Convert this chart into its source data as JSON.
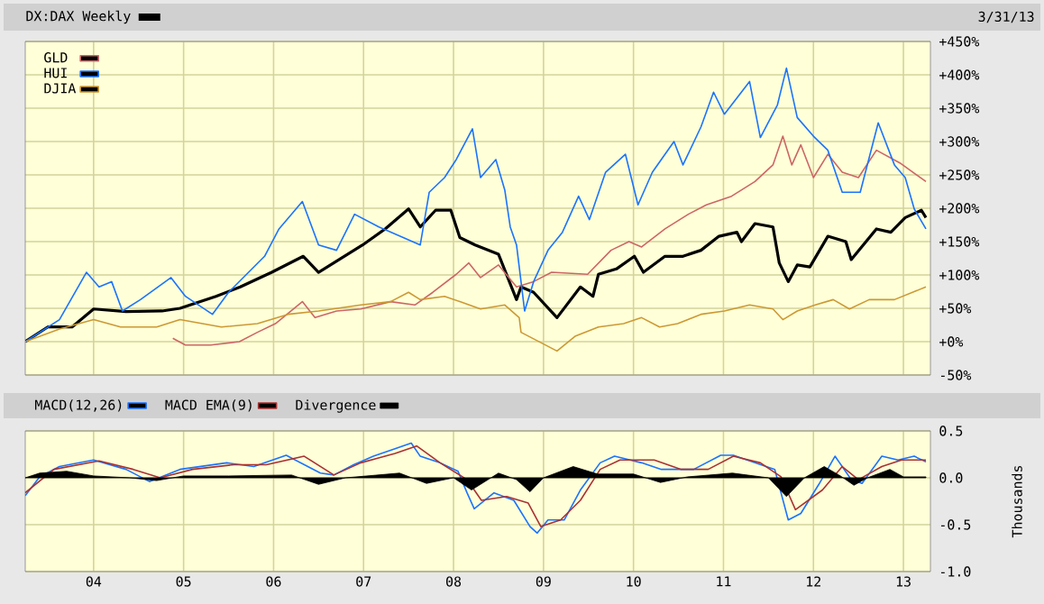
{
  "chart_data": [
    {
      "type": "line",
      "title": "DX:DAX Weekly",
      "subtitle": "3/31/13",
      "xlim": [
        2003.24,
        2013.3
      ],
      "xticks": [
        2004,
        2005,
        2006,
        2007,
        2008,
        2009,
        2010,
        2011,
        2012,
        2013
      ],
      "ylim": [
        -50,
        450
      ],
      "yticks": [
        {
          "value": -50,
          "label": "-50%"
        },
        {
          "value": 0,
          "label": "+0%"
        },
        {
          "value": 50,
          "label": "+50%"
        },
        {
          "value": 100,
          "label": "+100%"
        },
        {
          "value": 150,
          "label": "+150%"
        },
        {
          "value": 200,
          "label": "+200%"
        },
        {
          "value": 250,
          "label": "+250%"
        },
        {
          "value": 300,
          "label": "+300%"
        },
        {
          "value": 350,
          "label": "+350%"
        },
        {
          "value": 400,
          "label": "+400%"
        },
        {
          "value": 450,
          "label": "+450%"
        }
      ],
      "tick_labels": "y",
      "grid": true,
      "legend": "top left",
      "series": [
        {
          "color": "#000000",
          "x": [
            2003.24,
            2003.49,
            2003.76,
            2004.0,
            2004.36,
            2004.76,
            2004.96,
            2005.36,
            2005.63,
            2005.98,
            2006.33,
            2006.5,
            2006.99,
            2007.24,
            2007.5,
            2007.63,
            2007.8,
            2007.97,
            2008.07,
            2008.24,
            2008.5,
            2008.7,
            2008.75,
            2008.89,
            2009.15,
            2009.41,
            2009.55,
            2009.61,
            2009.81,
            2010.01,
            2010.11,
            2010.35,
            2010.55,
            2010.75,
            2010.95,
            2011.15,
            2011.2,
            2011.35,
            2011.55,
            2011.62,
            2011.72,
            2011.82,
            2011.96,
            2012.16,
            2012.36,
            2012.42,
            2012.7,
            2012.86,
            2013.02,
            2013.2,
            2013.25
          ],
          "values": [
            0,
            22,
            22,
            49,
            45,
            46,
            50,
            68,
            82,
            104,
            128,
            104,
            145,
            169,
            199,
            172,
            197,
            197,
            156,
            145,
            131,
            63,
            82,
            74,
            36,
            82,
            68,
            101,
            109,
            128,
            104,
            128,
            128,
            137,
            158,
            164,
            150,
            177,
            172,
            118,
            90,
            115,
            112,
            158,
            150,
            123,
            169,
            164,
            186,
            197,
            186
          ]
        },
        {
          "name": "GLD",
          "color": "#cc6666",
          "x": [
            2004.88,
            2005.02,
            2005.3,
            2005.62,
            2005.82,
            2006.02,
            2006.32,
            2006.46,
            2006.7,
            2006.97,
            2007.3,
            2007.57,
            2007.77,
            2008.03,
            2008.17,
            2008.3,
            2008.5,
            2008.7,
            2008.89,
            2009.09,
            2009.49,
            2009.75,
            2009.95,
            2010.09,
            2010.35,
            2010.61,
            2010.81,
            2011.09,
            2011.35,
            2011.55,
            2011.66,
            2011.76,
            2011.86,
            2012.0,
            2012.16,
            2012.32,
            2012.5,
            2012.7,
            2012.96,
            2013.25
          ],
          "values": [
            5,
            -5,
            -5,
            0,
            14,
            27,
            60,
            36,
            46,
            49,
            60,
            55,
            74,
            101,
            118,
            96,
            115,
            82,
            90,
            104,
            101,
            137,
            150,
            142,
            169,
            191,
            205,
            218,
            240,
            265,
            308,
            265,
            295,
            246,
            281,
            254,
            246,
            287,
            268,
            240
          ]
        },
        {
          "name": "HUI",
          "color": "#1a73ff",
          "x": [
            2003.24,
            2003.62,
            2003.92,
            2004.06,
            2004.2,
            2004.32,
            2004.52,
            2004.86,
            2005.02,
            2005.32,
            2005.5,
            2005.7,
            2005.9,
            2006.06,
            2006.32,
            2006.5,
            2006.7,
            2006.9,
            2007.17,
            2007.63,
            2007.73,
            2007.9,
            2008.03,
            2008.21,
            2008.3,
            2008.47,
            2008.57,
            2008.63,
            2008.7,
            2008.79,
            2008.89,
            2009.05,
            2009.21,
            2009.39,
            2009.51,
            2009.69,
            2009.91,
            2010.05,
            2010.21,
            2010.45,
            2010.55,
            2010.75,
            2010.89,
            2011.01,
            2011.29,
            2011.41,
            2011.6,
            2011.7,
            2011.82,
            2012.0,
            2012.16,
            2012.32,
            2012.52,
            2012.72,
            2012.9,
            2013.02,
            2013.12,
            2013.25
          ],
          "values": [
            0,
            33,
            104,
            82,
            90,
            46,
            63,
            96,
            68,
            41,
            74,
            101,
            128,
            169,
            210,
            145,
            137,
            191,
            172,
            145,
            224,
            246,
            273,
            319,
            246,
            273,
            227,
            172,
            145,
            46,
            90,
            137,
            164,
            218,
            183,
            254,
            281,
            205,
            254,
            300,
            265,
            322,
            374,
            341,
            390,
            306,
            355,
            410,
            336,
            308,
            287,
            224,
            224,
            328,
            265,
            246,
            199,
            169
          ]
        },
        {
          "name": "DJIA",
          "color": "#cc9933",
          "x": [
            2003.24,
            2003.62,
            2004.0,
            2004.3,
            2004.7,
            2004.96,
            2005.42,
            2005.82,
            2006.16,
            2006.5,
            2006.97,
            2007.3,
            2007.5,
            2007.63,
            2007.9,
            2008.07,
            2008.3,
            2008.57,
            2008.73,
            2008.75,
            2009.15,
            2009.35,
            2009.61,
            2009.89,
            2010.09,
            2010.29,
            2010.49,
            2010.75,
            2011.01,
            2011.29,
            2011.55,
            2011.66,
            2011.82,
            2012.02,
            2012.22,
            2012.4,
            2012.62,
            2012.9,
            2013.25
          ],
          "values": [
            0,
            19,
            33,
            22,
            22,
            33,
            22,
            27,
            41,
            46,
            55,
            60,
            74,
            63,
            68,
            60,
            49,
            55,
            36,
            14,
            -14,
            8,
            22,
            27,
            36,
            22,
            27,
            41,
            46,
            55,
            49,
            33,
            46,
            55,
            63,
            49,
            63,
            63,
            82
          ]
        }
      ]
    },
    {
      "type": "line",
      "ylabel": "Thousands",
      "xlim": [
        2003.24,
        2013.3
      ],
      "xticks": [
        {
          "value": 2004,
          "label": "04"
        },
        {
          "value": 2005,
          "label": "05"
        },
        {
          "value": 2006,
          "label": "06"
        },
        {
          "value": 2007,
          "label": "07"
        },
        {
          "value": 2008,
          "label": "08"
        },
        {
          "value": 2009,
          "label": "09"
        },
        {
          "value": 2010,
          "label": "10"
        },
        {
          "value": 2011,
          "label": "11"
        },
        {
          "value": 2012,
          "label": "12"
        },
        {
          "value": 2013,
          "label": "13"
        }
      ],
      "ylim": [
        -1,
        0.5
      ],
      "yticks": [
        {
          "value": -1,
          "label": "-1.0"
        },
        {
          "value": -0.5,
          "label": "-0.5"
        },
        {
          "value": 0,
          "label": "0.0"
        },
        {
          "value": 0.5,
          "label": "0.5"
        }
      ],
      "grid": true,
      "legend": "top",
      "series": [
        {
          "name": "MACD(12,26)",
          "color": "#1a73ff",
          "x": [
            2003.24,
            2003.4,
            2003.62,
            2004.0,
            2004.36,
            2004.62,
            2004.96,
            2005.48,
            2005.78,
            2006.14,
            2006.52,
            2006.67,
            2006.89,
            2007.11,
            2007.35,
            2007.53,
            2007.63,
            2007.85,
            2008.05,
            2008.15,
            2008.23,
            2008.45,
            2008.67,
            2008.85,
            2008.93,
            2009.05,
            2009.23,
            2009.41,
            2009.63,
            2009.79,
            2010.09,
            2010.31,
            2010.67,
            2010.97,
            2011.11,
            2011.35,
            2011.57,
            2011.72,
            2011.86,
            2012.06,
            2012.24,
            2012.42,
            2012.54,
            2012.76,
            2012.94,
            2013.12,
            2013.25
          ],
          "values": [
            -0.19,
            0.01,
            0.12,
            0.19,
            0.09,
            -0.04,
            0.09,
            0.16,
            0.12,
            0.24,
            0.05,
            0.03,
            0.14,
            0.23,
            0.31,
            0.37,
            0.23,
            0.16,
            0.07,
            -0.16,
            -0.33,
            -0.16,
            -0.24,
            -0.52,
            -0.59,
            -0.45,
            -0.45,
            -0.13,
            0.16,
            0.23,
            0.16,
            0.09,
            0.09,
            0.24,
            0.24,
            0.16,
            0.09,
            -0.45,
            -0.38,
            -0.07,
            0.23,
            -0.02,
            -0.06,
            0.23,
            0.19,
            0.23,
            0.17
          ]
        },
        {
          "name": "MACD EMA(9)",
          "color": "#a83232",
          "x": [
            2003.24,
            2003.56,
            2004.06,
            2004.44,
            2004.74,
            2005.1,
            2005.56,
            2005.92,
            2006.34,
            2006.67,
            2006.97,
            2007.35,
            2007.59,
            2007.85,
            2008.15,
            2008.31,
            2008.59,
            2008.83,
            2008.97,
            2009.19,
            2009.41,
            2009.63,
            2009.85,
            2010.23,
            2010.53,
            2010.83,
            2011.11,
            2011.41,
            2011.64,
            2011.8,
            2012.1,
            2012.32,
            2012.5,
            2012.76,
            2012.98,
            2013.25
          ],
          "values": [
            -0.16,
            0.09,
            0.18,
            0.09,
            0,
            0.09,
            0.14,
            0.14,
            0.23,
            0.03,
            0.16,
            0.26,
            0.34,
            0.16,
            -0.02,
            -0.24,
            -0.2,
            -0.27,
            -0.52,
            -0.45,
            -0.24,
            0.09,
            0.19,
            0.19,
            0.09,
            0.09,
            0.23,
            0.16,
            0.01,
            -0.34,
            -0.13,
            0.12,
            -0.02,
            0.12,
            0.19,
            0.19
          ]
        },
        {
          "name": "Divergence",
          "color": "#000000",
          "type": "area",
          "x": [
            2003.24,
            2003.4,
            2003.7,
            2004.0,
            2004.4,
            2004.7,
            2005.0,
            2005.5,
            2006.2,
            2006.5,
            2006.8,
            2007.4,
            2007.7,
            2008.0,
            2008.2,
            2008.5,
            2008.7,
            2008.85,
            2009.0,
            2009.33,
            2009.6,
            2010.0,
            2010.3,
            2010.6,
            2011.1,
            2011.5,
            2011.7,
            2011.9,
            2012.12,
            2012.3,
            2012.45,
            2012.6,
            2012.85,
            2013.0,
            2013.25
          ],
          "values": [
            0,
            0.05,
            0.07,
            0.02,
            0.0,
            -0.03,
            0.02,
            0.02,
            0.03,
            -0.07,
            0.0,
            0.05,
            -0.06,
            0.0,
            -0.13,
            0.05,
            -0.02,
            -0.15,
            0.0,
            0.12,
            0.04,
            0.04,
            -0.05,
            0.01,
            0.05,
            0.0,
            -0.2,
            0.0,
            0.12,
            0.02,
            -0.08,
            0.0,
            0.09,
            0.01,
            0.01
          ]
        }
      ]
    }
  ]
}
